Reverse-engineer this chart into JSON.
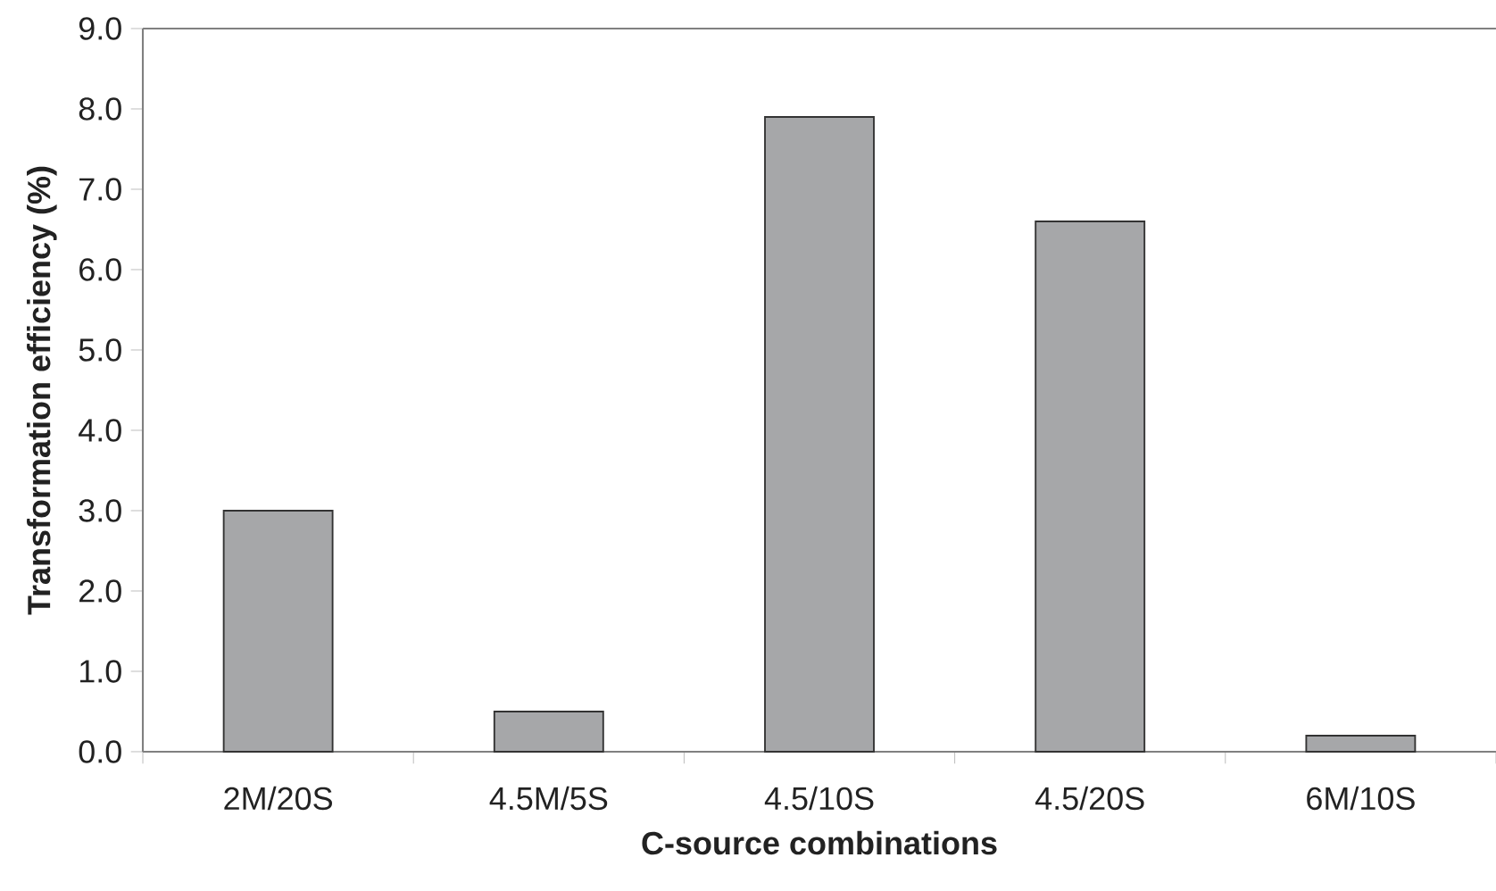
{
  "chart_data": {
    "type": "bar",
    "xlabel": "C-source combinations",
    "ylabel": "Transformation efficiency (%)",
    "categories": [
      "2M/20S",
      "4.5M/5S",
      "4.5/10S",
      "4.5/20S",
      "6M/10S"
    ],
    "values": [
      3.0,
      0.5,
      7.9,
      6.6,
      0.2
    ],
    "color": "#a6a7a9",
    "ylim": [
      0,
      9
    ],
    "yticks": [
      {
        "value": 0,
        "label": "0.0"
      },
      {
        "value": 1,
        "label": "1.0"
      },
      {
        "value": 2,
        "label": "2.0"
      },
      {
        "value": 3,
        "label": "3.0"
      },
      {
        "value": 4,
        "label": "4.0"
      },
      {
        "value": 5,
        "label": "5.0"
      },
      {
        "value": 6,
        "label": "6.0"
      },
      {
        "value": 7,
        "label": "7.0"
      },
      {
        "value": 8,
        "label": "8.0"
      },
      {
        "value": 9,
        "label": "9.0"
      }
    ],
    "grid": false
  }
}
